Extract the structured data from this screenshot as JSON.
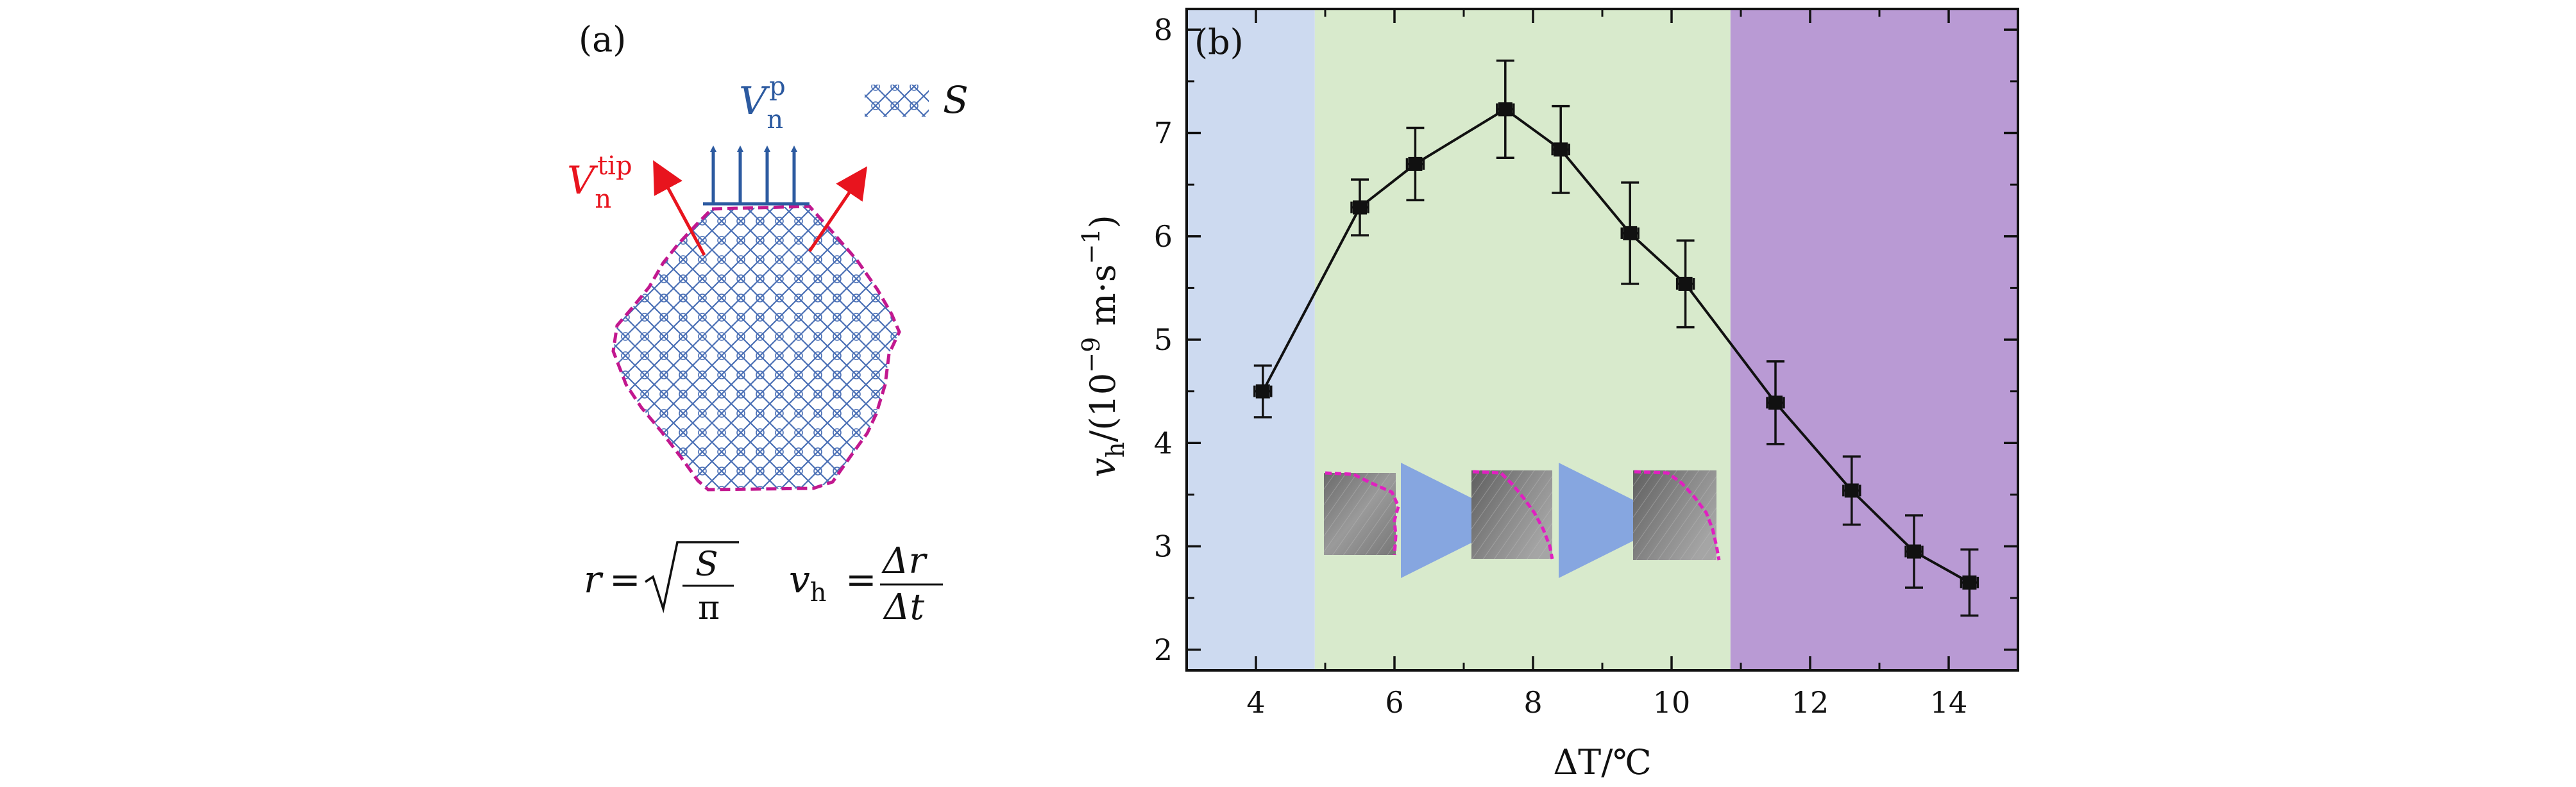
{
  "panel_a": {
    "label": "(a)",
    "vn_p": {
      "main": "V",
      "sub": "n",
      "sup": "p"
    },
    "vn_tip": {
      "main": "V",
      "sub": "n",
      "sup": "tip"
    },
    "area_legend": "S",
    "formula_r": {
      "lhs": "r",
      "eq": "=",
      "num": "S",
      "den": "π"
    },
    "formula_v": {
      "lhs": "v",
      "lhs_sub": "h",
      "eq": "=",
      "num": "Δr",
      "den": "Δt"
    },
    "colors": {
      "hatch": "#4a6fb5",
      "outline": "#c2188f",
      "arrow_p": "#2c5aa0",
      "arrow_tip": "#e8141e"
    }
  },
  "chart_data": {
    "type": "line",
    "panel_label": "(b)",
    "xlabel": "ΔT/℃",
    "ylabel": {
      "main": "v",
      "sub": "h",
      "rest": "/(10",
      "exp": "−9",
      "unit": " m·s",
      "unit_exp": "−1",
      "close": ")"
    },
    "xlim": [
      3,
      15
    ],
    "ylim": [
      1.8,
      8.2
    ],
    "xticks": [
      4,
      6,
      8,
      10,
      12,
      14
    ],
    "yticks": [
      2,
      3,
      4,
      5,
      6,
      7,
      8
    ],
    "series": [
      {
        "x": [
          4.1,
          5.5,
          6.3,
          7.6,
          8.4,
          9.4,
          10.2,
          11.5,
          12.6,
          13.5,
          14.3
        ],
        "y": [
          4.5,
          6.28,
          6.7,
          7.23,
          6.84,
          6.03,
          5.54,
          4.39,
          3.54,
          2.95,
          2.65
        ],
        "yerr": [
          0.25,
          0.27,
          0.35,
          0.47,
          0.42,
          0.49,
          0.42,
          0.4,
          0.33,
          0.35,
          0.32
        ],
        "xerr": [
          0.12,
          0.12,
          0.12,
          0.12,
          0.12,
          0.12,
          0.12,
          0.12,
          0.12,
          0.12,
          0.12
        ]
      }
    ],
    "regions": [
      {
        "x0": 3,
        "x1": 4.85,
        "color": "#cddaf0"
      },
      {
        "x0": 4.85,
        "x1": 10.85,
        "color": "#d8eacc"
      },
      {
        "x0": 10.85,
        "x1": 15,
        "color": "#b99ad4"
      }
    ],
    "grid": false,
    "legend": "none",
    "insets": [
      "micrograph-1",
      "micrograph-2",
      "micrograph-3"
    ],
    "inset_outline_color": "#e020c0",
    "inset_arrow_color": "#86a6e0"
  }
}
